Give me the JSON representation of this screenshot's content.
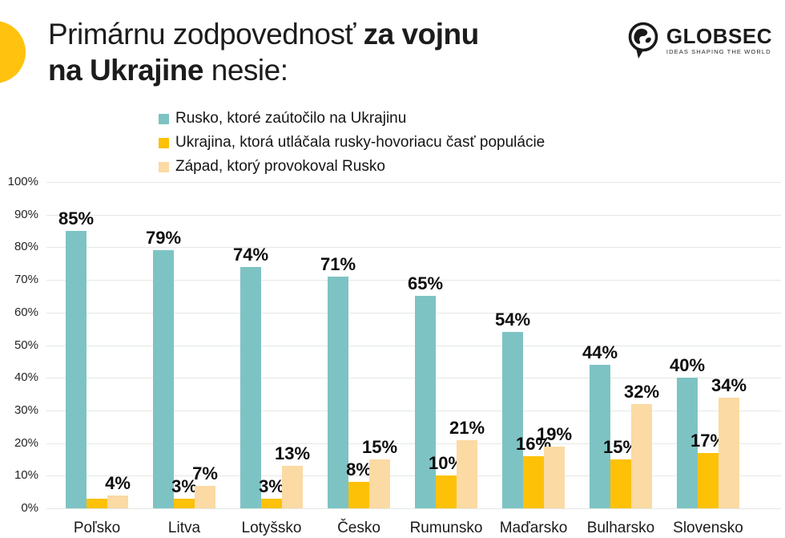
{
  "header": {
    "title_line1_regular": "Primárnu zodpovednosť ",
    "title_line1_bold": "za vojnu",
    "title_line2_bold": "na Ukrajine",
    "title_line2_regular": " nesie:"
  },
  "logo": {
    "brand": "GLOBSEC",
    "tagline": "IDEAS SHAPING THE WORLD"
  },
  "colors": {
    "accent_blob": "#FFC20E",
    "grid": "#E3E9E4",
    "teal": "#7EC3C4",
    "yellow": "#FDC107",
    "peach": "#FBDAA4"
  },
  "chart_data": {
    "type": "bar",
    "title": "Primárnu zodpovednosť za vojnu na Ukrajine nesie:",
    "xlabel": "",
    "ylabel": "",
    "ylim": [
      0,
      100
    ],
    "grid": true,
    "legend_position": "top",
    "yticks": [
      "100%",
      "90%",
      "80%",
      "70%",
      "60%",
      "50%",
      "40%",
      "30%",
      "20%",
      "10%",
      "0%"
    ],
    "categories": [
      "Poľsko",
      "Litva",
      "Lotyšsko",
      "Česko",
      "Rumunsko",
      "Maďarsko",
      "Bulharsko",
      "Slovensko"
    ],
    "series": [
      {
        "name": "Rusko, ktoré zaútočilo na Ukrajinu",
        "color": "#7EC3C4",
        "values": [
          85,
          79,
          74,
          71,
          65,
          54,
          44,
          40
        ],
        "labels": [
          "85%",
          "79%",
          "74%",
          "71%",
          "65%",
          "54%",
          "44%",
          "40%"
        ]
      },
      {
        "name": "Ukrajina, ktorá utláčala rusky-hovoriacu časť populácie",
        "color": "#FDC107",
        "values": [
          3,
          3,
          3,
          8,
          10,
          16,
          15,
          17
        ],
        "labels": [
          "",
          "3%",
          "3%",
          "8%",
          "10%",
          "16%",
          "15%",
          "17%"
        ]
      },
      {
        "name": "Západ, ktorý provokoval Rusko",
        "color": "#FBDAA4",
        "values": [
          4,
          7,
          13,
          15,
          21,
          19,
          32,
          34
        ],
        "labels": [
          "4%",
          "7%",
          "13%",
          "15%",
          "21%",
          "19%",
          "32%",
          "34%"
        ]
      }
    ]
  }
}
